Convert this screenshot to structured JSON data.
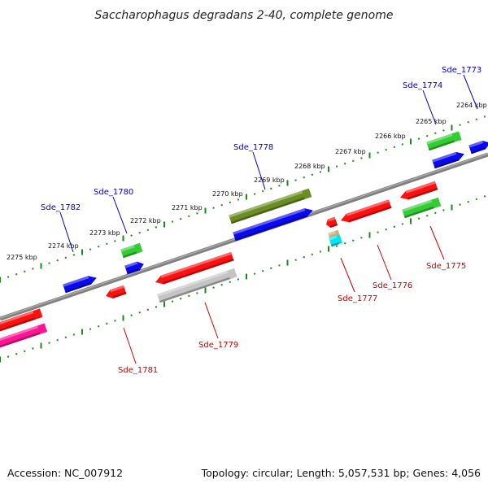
{
  "title": "Saccharophagus degradans 2-40, complete genome",
  "footer": {
    "accession": "Accession: NC_007912",
    "summary": "Topology: circular; Length: 5,057,531 bp; Genes: 4,056"
  },
  "kbp_labels": [
    "2264 kbp",
    "2265 kbp",
    "2266 kbp",
    "2267 kbp",
    "2268 kbp",
    "2269 kbp",
    "2270 kbp",
    "2271 kbp",
    "2272 kbp",
    "2273 kbp",
    "2274 kbp",
    "2275 kbp"
  ],
  "top_gene_labels": [
    "Sde_1773",
    "Sde_1774",
    "Sde_1778",
    "Sde_1780",
    "Sde_1782"
  ],
  "bottom_gene_labels": [
    "Sde_1775",
    "Sde_1776",
    "Sde_1777",
    "Sde_1779",
    "Sde_1781"
  ],
  "colors": {
    "top_label": "#0000cc",
    "bottom_label": "#cc0000",
    "backbone": "#808080",
    "tick": "#1a8a1a",
    "red": "#ff1010",
    "blue": "#0a0af0",
    "green": "#33cc33",
    "olive": "#6b8e23",
    "gray": "#c4c4c4",
    "pink": "#ff1493",
    "tan": "#c8b07a",
    "cyan": "#00e5ee"
  }
}
